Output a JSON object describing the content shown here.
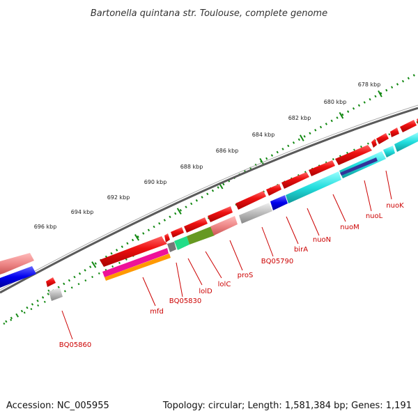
{
  "title": "Bartonella quintana str. Toulouse, complete genome",
  "footer": {
    "accession": "Accession: NC_005955",
    "summary": "Topology: circular; Length: 1,581,384 bp; Genes: 1,191"
  },
  "ruler": {
    "ticks": [
      "678 kbp",
      "680 kbp",
      "682 kbp",
      "684 kbp",
      "686 kbp",
      "688 kbp",
      "690 kbp",
      "692 kbp",
      "694 kbp",
      "696 kbp"
    ]
  },
  "genes": [
    "nuoK",
    "nuoL",
    "nuoM",
    "nuoN",
    "birA",
    "BQ05790",
    "proS",
    "lolC",
    "lolD",
    "BQ05830",
    "mfd",
    "BQ05860"
  ],
  "colors": {
    "gene": "#ee1111",
    "gene_light": "#ee8888",
    "hypothetical": "#bbbbbb",
    "blue": "#0000ee",
    "cyan": "#22dddd",
    "navy": "#333399",
    "green": "#22dd88",
    "olive": "#669922",
    "magenta": "#ee1199",
    "orange": "#ff9900",
    "backbone": "#777777",
    "tick": "#118811",
    "label": "#cc0000"
  }
}
